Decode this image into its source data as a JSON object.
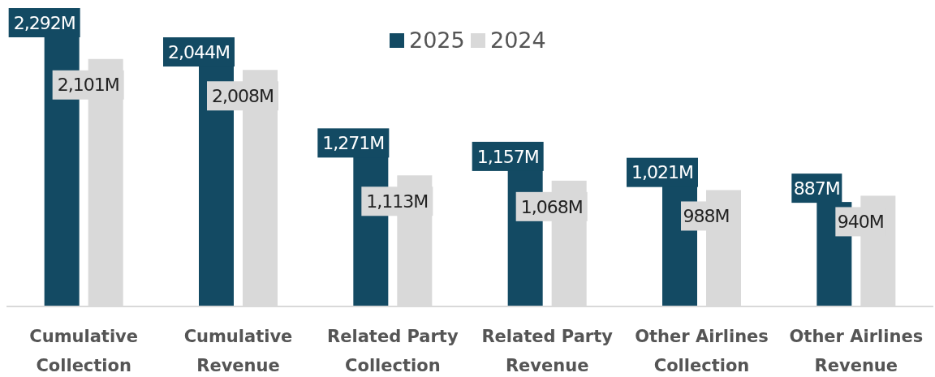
{
  "chart_data": {
    "type": "bar",
    "categories": [
      "Cumulative Collection",
      "Cumulative Revenue",
      "Related Party Collection",
      "Related Party Revenue",
      "Other Airlines Collection",
      "Other Airlines Revenue"
    ],
    "series": [
      {
        "name": "2025",
        "color": "#134a63",
        "values": [
          2292,
          2044,
          1271,
          1157,
          1021,
          887
        ],
        "value_labels": [
          "2,292M",
          "2,044M",
          "1,271M",
          "1,157M",
          "1,021M",
          "887M"
        ]
      },
      {
        "name": "2024",
        "color": "#d9d9d9",
        "values": [
          2101,
          2008,
          1113,
          1068,
          988,
          940
        ],
        "value_labels": [
          "2,101M",
          "2,008M",
          "1,113M",
          "1,068M",
          "988M",
          "940M"
        ]
      }
    ],
    "legend": "top"
  }
}
